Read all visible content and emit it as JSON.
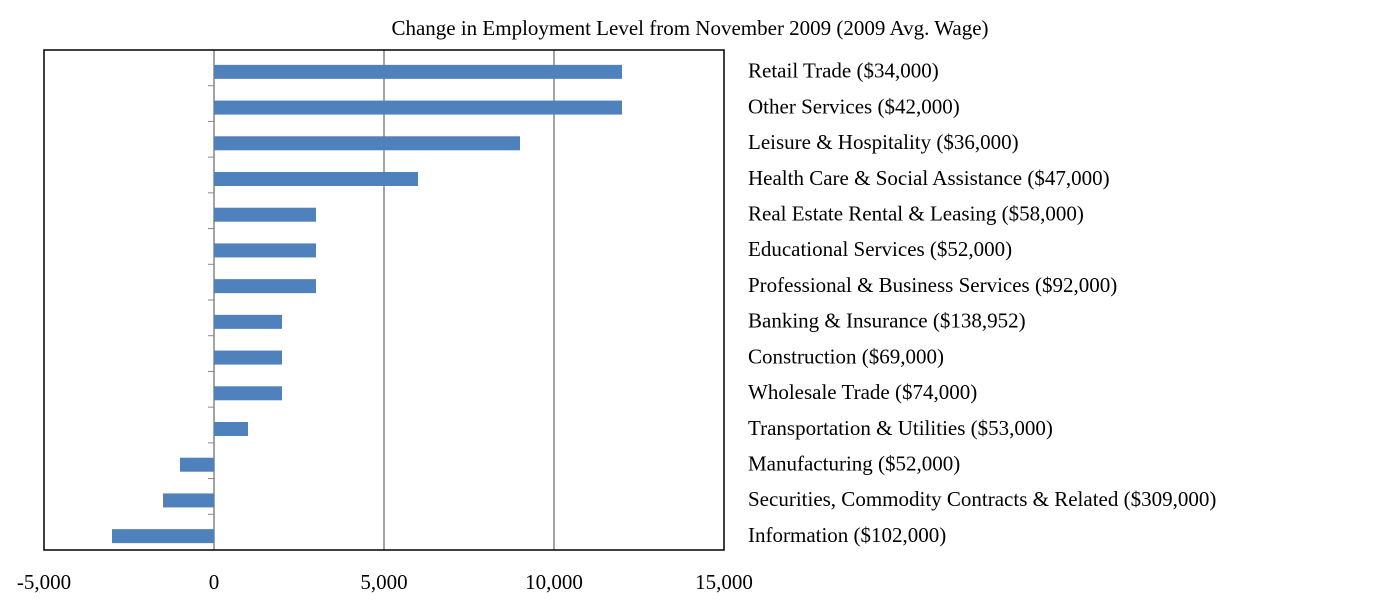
{
  "chart_data": {
    "type": "bar",
    "orientation": "horizontal",
    "title": "Change in Employment Level from November 2009 (2009 Avg. Wage)",
    "categories": [
      "Retail Trade ($34,000)",
      "Other Services ($42,000)",
      "Leisure & Hospitality ($36,000)",
      "Health Care & Social Assistance ($47,000)",
      "Real Estate Rental & Leasing ($58,000)",
      "Educational Services ($52,000)",
      "Professional & Business Services ($92,000)",
      "Banking & Insurance ($138,952)",
      "Construction ($69,000)",
      "Wholesale Trade ($74,000)",
      "Transportation & Utilities ($53,000)",
      "Manufacturing ($52,000)",
      "Securities, Commodity Contracts & Related ($309,000)",
      "Information ($102,000)"
    ],
    "values": [
      12000,
      12000,
      9000,
      6000,
      3000,
      3000,
      3000,
      2000,
      2000,
      2000,
      1000,
      -1000,
      -1500,
      -3000
    ],
    "color": "#4f81bd",
    "xlim": [
      -5000,
      15000
    ],
    "xticks": [
      {
        "value": -5000,
        "label": "-5,000"
      },
      0,
      {
        "value": 5000,
        "label": "5,000"
      },
      {
        "value": 10000,
        "label": "10,000"
      },
      {
        "value": 15000,
        "label": "15,000"
      }
    ],
    "grid": true
  }
}
